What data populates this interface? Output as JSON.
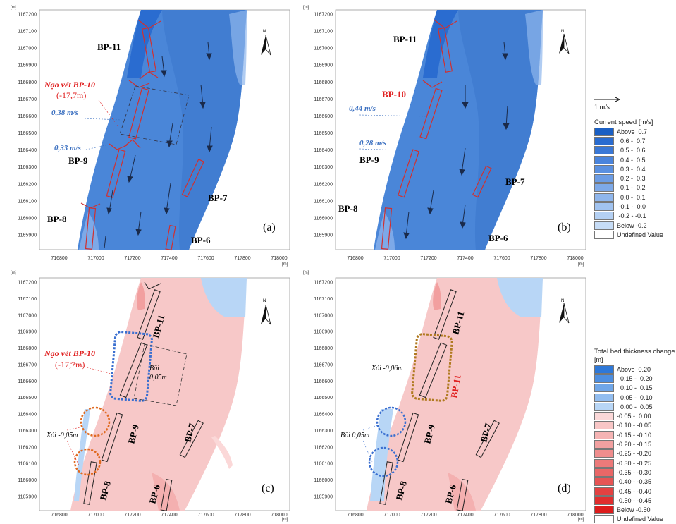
{
  "unit_label": "[m]",
  "y_ticks": [
    "1165900",
    "1166000",
    "1166100",
    "1166200",
    "1166300",
    "1166400",
    "1166500",
    "1166600",
    "1166700",
    "1166800",
    "1166900",
    "1167000",
    "1167100",
    "1167200"
  ],
  "x_ticks": [
    "716800",
    "717000",
    "717200",
    "717400",
    "717600",
    "717800",
    "718000"
  ],
  "panels": {
    "a": {
      "tag": "(a)",
      "labels": {
        "bp11": "BP-11",
        "bp10_title": "Nạo vét BP-10",
        "bp10_depth": "(-17,7m)",
        "bp9": "BP-9",
        "bp8": "BP-8",
        "bp7": "BP-7",
        "bp6": "BP-6"
      },
      "speeds": [
        "0,38 m/s",
        "0,33 m/s"
      ]
    },
    "b": {
      "tag": "(b)",
      "labels": {
        "bp11": "BP-11",
        "bp10": "BP-10",
        "bp9": "BP-9",
        "bp8": "BP-8",
        "bp7": "BP-7",
        "bp6": "BP-6"
      },
      "speeds": [
        "0,44 m/s",
        "0,28 m/s"
      ]
    },
    "c": {
      "tag": "(c)",
      "labels": {
        "bp11": "BP-11",
        "bp10_title": "Nạo vét BP-10",
        "bp10_depth": "(-17,7m)",
        "bp9": "BP-9",
        "bp8": "BP-8",
        "bp7": "BP-7",
        "bp6": "BP-6"
      },
      "notes": [
        "Bồi",
        "0,05m",
        "Xói -0,05m"
      ]
    },
    "d": {
      "tag": "(d)",
      "labels": {
        "bp11": "BP-11",
        "bp11_red": "BP-11",
        "bp9": "BP-9",
        "bp8": "BP-8",
        "bp7": "BP-7",
        "bp6": "BP-6"
      },
      "notes": [
        "Xói -0,06m",
        "Bồi 0,05m"
      ]
    }
  },
  "scale_label": "1 m/s",
  "legend_speed": {
    "title": "Current speed [m/s]",
    "items": [
      {
        "label": "Above  0.7",
        "color": "#1a5fc4"
      },
      {
        "label": "  0.6 -  0.7",
        "color": "#2a6cd0"
      },
      {
        "label": "  0.5 -  0.6",
        "color": "#3a78d6"
      },
      {
        "label": "  0.4 -  0.5",
        "color": "#4a84dc"
      },
      {
        "label": "  0.3 -  0.4",
        "color": "#5a90e0"
      },
      {
        "label": "  0.2 -  0.3",
        "color": "#6b9ce4"
      },
      {
        "label": "  0.1 -  0.2",
        "color": "#7da9e8"
      },
      {
        "label": "  0.0 -  0.1",
        "color": "#8fb6ec"
      },
      {
        "label": " -0.1 -  0.0",
        "color": "#a1c3f0"
      },
      {
        "label": " -0.2 - -0.1",
        "color": "#b4d0f3"
      },
      {
        "label": "Below -0.2",
        "color": "#c6dcf6"
      },
      {
        "label": "Undefined Value",
        "color": "#ffffff"
      }
    ]
  },
  "legend_bed": {
    "title": "Total bed thickness change",
    "unit": "[m]",
    "items": [
      {
        "label": "Above  0.20",
        "color": "#2e78d8"
      },
      {
        "label": "  0.15 -  0.20",
        "color": "#4d8ee0"
      },
      {
        "label": "  0.10 -  0.15",
        "color": "#6fa6e8"
      },
      {
        "label": "  0.05 -  0.10",
        "color": "#92bdef"
      },
      {
        "label": "  0.00 -  0.05",
        "color": "#b8d6f6"
      },
      {
        "label": "-0.05 -  0.00",
        "color": "#fbd8d8"
      },
      {
        "label": "-0.10 - -0.05",
        "color": "#f8c6c6"
      },
      {
        "label": "-0.15 - -0.10",
        "color": "#f5b3b3"
      },
      {
        "label": "-0.20 - -0.15",
        "color": "#f2a0a0"
      },
      {
        "label": "-0.25 - -0.20",
        "color": "#ef8d8d"
      },
      {
        "label": "-0.30 - -0.25",
        "color": "#ec7a7a"
      },
      {
        "label": "-0.35 - -0.30",
        "color": "#e96767"
      },
      {
        "label": "-0.40 - -0.35",
        "color": "#e65454"
      },
      {
        "label": "-0.45 - -0.40",
        "color": "#e34141"
      },
      {
        "label": "-0.50 - -0.45",
        "color": "#e02e2e"
      },
      {
        "label": "Below -0.50",
        "color": "#dc1c1c"
      },
      {
        "label": "Undefined Value",
        "color": "#ffffff"
      }
    ]
  },
  "colors": {
    "water_blue": "#4a86d8",
    "water_pink": "#f7c8c8",
    "pier_red": "#d03030",
    "ink_blue": "#3a6fc0",
    "ink_red": "#e02020",
    "orange": "#e06a20"
  }
}
